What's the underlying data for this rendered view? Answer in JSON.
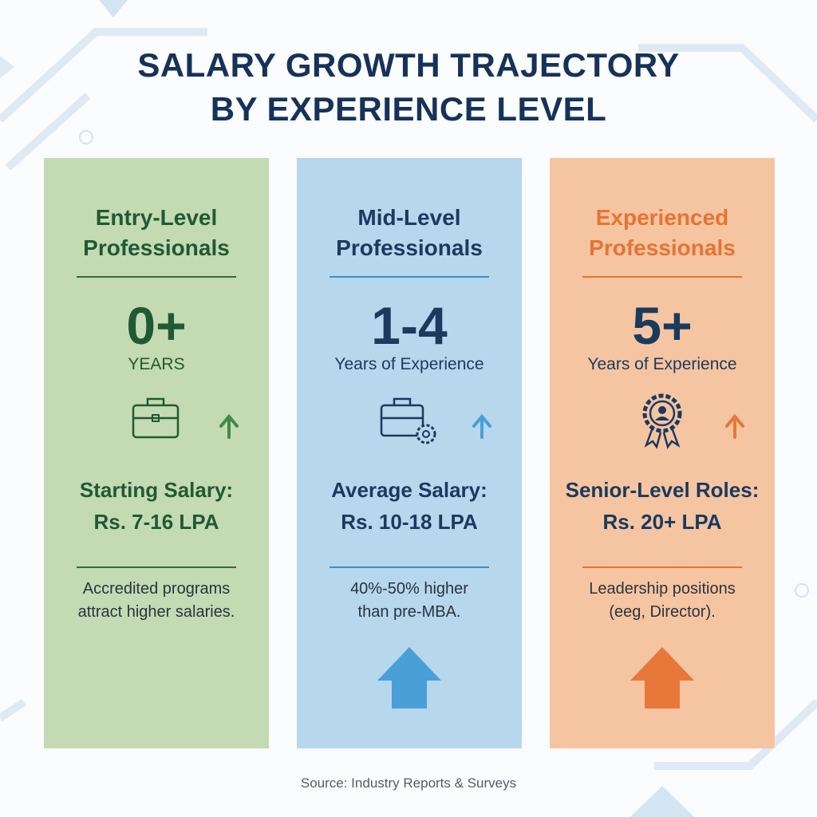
{
  "header": {
    "title_lines": [
      "SALARY GROWTH TRAJECTORY",
      "BY EXPERIENCE LEVEL"
    ]
  },
  "columns": [
    {
      "heading_lines": [
        "Entry-Level",
        "Professionals"
      ],
      "figure": "0+",
      "figure_label": "YEARS",
      "salary_label": "Starting Salary:",
      "salary": "Rs. 7-16 LPA",
      "note_lines": [
        "Accredited programs",
        "attract higher salaries."
      ]
    },
    {
      "heading_lines": [
        "Mid-Level",
        "Professionals"
      ],
      "figure": "1-4",
      "figure_label": "Years of Experience",
      "salary_label": "Average Salary:",
      "salary": "Rs. 10-18 LPA",
      "note_lines": [
        "40%-50% higher",
        "than pre-MBA."
      ]
    },
    {
      "heading_lines": [
        "Experienced",
        "Professionals"
      ],
      "figure": "5+",
      "figure_label": "Years of Experience",
      "salary_label": "Senior-Level Roles:",
      "salary": "Rs. 20+ LPA",
      "note_lines": [
        "Leadership positions",
        "(eeg, Director)."
      ]
    }
  ],
  "footer": {
    "source": "Source: Industry Reports & Surveys"
  }
}
